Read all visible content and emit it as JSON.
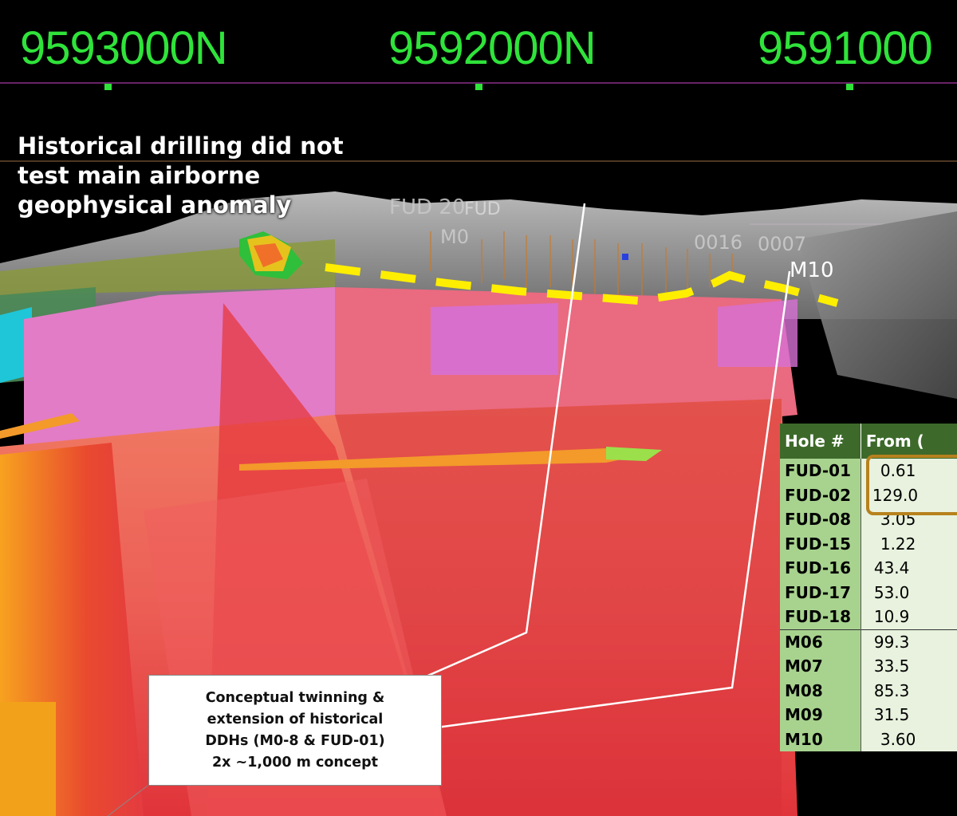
{
  "northings": [
    "9593000N",
    "9592000N",
    "9591000"
  ],
  "headline": "Historical drilling did not test main airborne geophysical anomaly",
  "hole_labels": {
    "fud20": "FUD 20",
    "fud": "FUD",
    "m0": "M0",
    "fud16": "0016",
    "fud07": "0007",
    "m10": "M10"
  },
  "callout": {
    "line1": "Conceptual twinning &",
    "line2": "extension of historical",
    "line3": "DDHs (M0-8 & FUD-01)",
    "line4": "2x ~1,000 m concept"
  },
  "table": {
    "headers": [
      "Hole #",
      "From ("
    ],
    "rows": [
      {
        "hole": "FUD-01",
        "from": "0.61"
      },
      {
        "hole": "FUD-02",
        "from": "129.0"
      },
      {
        "hole": "FUD-08",
        "from": "3.05"
      },
      {
        "hole": "FUD-15",
        "from": "1.22"
      },
      {
        "hole": "FUD-16",
        "from": "43.4"
      },
      {
        "hole": "FUD-17",
        "from": "53.0"
      },
      {
        "hole": "FUD-18",
        "from": "10.9"
      },
      {
        "hole": "M06",
        "from": "99.3"
      },
      {
        "hole": "M07",
        "from": "33.5"
      },
      {
        "hole": "M08",
        "from": "85.3"
      },
      {
        "hole": "M09",
        "from": "31.5"
      },
      {
        "hole": "M10",
        "from": "3.60"
      }
    ]
  },
  "colors": {
    "northing_text": "#2fe33a",
    "anomaly_trace": "#ffee00",
    "table_header": "#3d6a2a",
    "hole_cell": "#a8d38f",
    "from_cell": "#e8f2de",
    "highlight": "#b7811d"
  }
}
